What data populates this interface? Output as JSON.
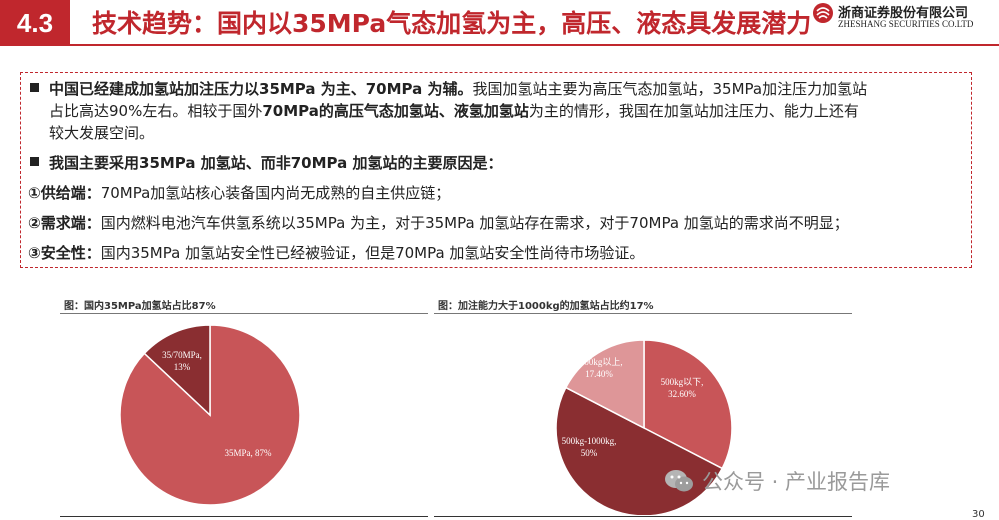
{
  "header": {
    "section": "4.3",
    "title": "技术趋势：国内以35MPa气态加氢为主，高压、液态具发展潜力",
    "logo_cn": "浙商证券股份有限公司",
    "logo_en": "ZHESHANG SECURITIES CO.LTD",
    "accent_color": "#c0272d"
  },
  "box": {
    "p1_bold": "中国已经建成加氢站加注压力以35MPa 为主、70MPa 为辅。",
    "p1_t1": "我国加氢站主要为高压气态加氢站，35MPa加注压力加氢站",
    "p1_t2": "占比高达90%左右。相较于国外",
    "p1_b2": "70MPa的高压气态加氢站、液氢加氢站",
    "p1_t3": "为主的情形，我国在加氢站加注压力、能力上还有",
    "p1_t4": "较大发展空间。",
    "p2": "我国主要采用35MPa 加氢站、而非70MPa 加氢站的主要原因是：",
    "r1_label": "①供给端：",
    "r1_text": "70MPa加氢站核心装备国内尚无成熟的自主供应链；",
    "r2_label": "②需求端：",
    "r2_text": "国内燃料电池汽车供氢系统以35MPa 为主，对于35MPa 加氢站存在需求，对于70MPa 加氢站的需求尚不明显；",
    "r3_label": "③安全性：",
    "r3_text": "国内35MPa 加氢站安全性已经被验证，但是70MPa 加氢站安全性尚待市场验证。"
  },
  "chart_data": [
    {
      "type": "pie",
      "title": "图：国内35MPa加氢站占比87%",
      "categories": [
        "35MPa",
        "35/70MPa"
      ],
      "values": [
        87,
        13
      ],
      "labels": [
        "35MPa, 87%",
        "35/70MPa,|13%"
      ],
      "colors": [
        "#c85558",
        "#8a2e31"
      ]
    },
    {
      "type": "pie",
      "title": "图：加注能力大于1000kg的加氢站占比约17%",
      "categories": [
        "500kg以下",
        "500kg-1000kg",
        "1000kg以上"
      ],
      "values": [
        32.6,
        50,
        17.4
      ],
      "labels": [
        "500kg以下,|32.60%",
        "500kg-1000kg,|50%",
        "1000kg以上,|17.40%"
      ],
      "colors": [
        "#c85558",
        "#8a2e31",
        "#de9698"
      ]
    }
  ],
  "watermark": "公众号 · 产业报告库",
  "page_number": "30"
}
